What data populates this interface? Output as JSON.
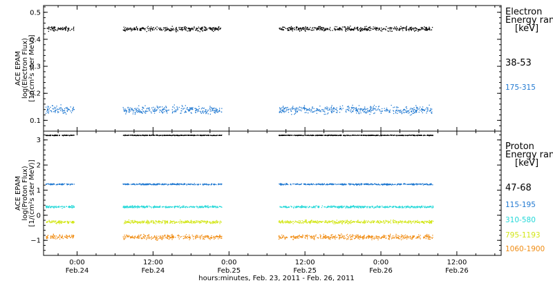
{
  "chart_data": [
    {
      "type": "scatter",
      "ylabel": [
        "ACE EPAM",
        "log(Electron Flux)",
        "[1/(cm²s ster MeV)]"
      ],
      "yticks": [
        "0.1",
        "0.2",
        "0.3",
        "0.4",
        "0.5"
      ],
      "ylim": [
        0.06,
        0.525
      ],
      "legend_title": [
        "Electron",
        "Energy range",
        "[keV]"
      ],
      "series": [
        {
          "name": "38-53",
          "color": "#000000",
          "level": 0.44,
          "spread": 0.012
        },
        {
          "name": "175-315",
          "color": "#1f78d1",
          "level": 0.14,
          "spread": 0.022
        }
      ]
    },
    {
      "type": "scatter",
      "ylabel": [
        "ACE EPAM",
        "log(Proton Flux)",
        "[1/(cm²s ster MeV)]"
      ],
      "yticks": [
        "−1",
        "0",
        "1",
        "2",
        "3"
      ],
      "ylim": [
        -1.6,
        3.35
      ],
      "legend_title": [
        "Proton",
        "Energy range",
        "[keV]"
      ],
      "series": [
        {
          "name": "47-68",
          "color": "#000000",
          "level": 3.2,
          "spread": 0.02
        },
        {
          "name": "115-195",
          "color": "#1f78d1",
          "level": 1.25,
          "spread": 0.04
        },
        {
          "name": "310-580",
          "color": "#22d8d8",
          "level": 0.35,
          "spread": 0.06
        },
        {
          "name": "795-1193",
          "color": "#d2e615",
          "level": -0.25,
          "spread": 0.09
        },
        {
          "name": "1060-1900",
          "color": "#f08c12",
          "level": -0.85,
          "spread": 0.14
        }
      ]
    }
  ],
  "x": {
    "xlabel": "hours:minutes, Feb. 23, 2011 - Feb. 26, 2011",
    "ticks": [
      {
        "time": "0:00",
        "date": "Feb.24"
      },
      {
        "time": "12:00",
        "date": "Feb.24"
      },
      {
        "time": "0:00",
        "date": "Feb.25"
      },
      {
        "time": "12:00",
        "date": "Feb.25"
      },
      {
        "time": "0:00",
        "date": "Feb.26"
      },
      {
        "time": "12:00",
        "date": "Feb.26"
      }
    ],
    "data_segments_hours": [
      [
        -5.0,
        -0.5
      ],
      [
        7.2,
        22.8
      ],
      [
        31.8,
        56.2
      ]
    ]
  }
}
